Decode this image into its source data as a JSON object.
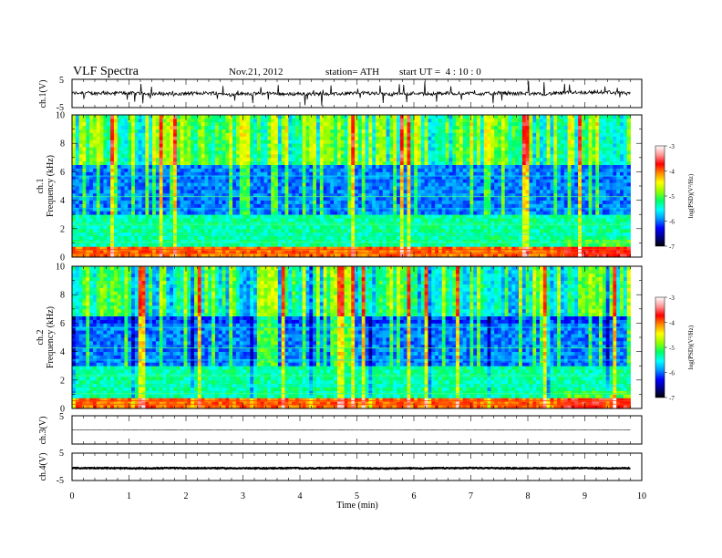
{
  "header": {
    "title": "VLF Spectra",
    "date": "Nov.21, 2012",
    "station": "station= ATH",
    "start": "start UT =  4 : 10 : 0"
  },
  "chart_data": [
    {
      "type": "line",
      "id": "ch1-waveform",
      "ylabel": "ch.1(V)",
      "ylim": [
        -5,
        5
      ],
      "y_ticks": [
        "5",
        "-5"
      ],
      "xlim": [
        0,
        10
      ],
      "x_end": 9.8,
      "baseline": 0,
      "noise_amplitude": 1.2
    },
    {
      "type": "heatmap",
      "id": "ch1-spectrogram",
      "ylabel": "ch.1 Frequency (kHz)",
      "ylim": [
        0,
        10
      ],
      "y_ticks": [
        "0",
        "2",
        "4",
        "6",
        "8",
        "10"
      ],
      "xlim": [
        0,
        10
      ],
      "x_end": 9.8,
      "colorbar": {
        "label": "log(PSD) (V²/Hz)",
        "range": [
          -7,
          -3
        ],
        "ticks": [
          "-3",
          "-4",
          "-5",
          "-6",
          "-7"
        ],
        "colors": [
          "#000000",
          "#00008b",
          "#0000ff",
          "#0096ff",
          "#00ffff",
          "#00ff64",
          "#96ff00",
          "#ffff00",
          "#ff8c00",
          "#ff0000",
          "#ff9696",
          "#ffffff"
        ]
      }
    },
    {
      "type": "heatmap",
      "id": "ch2-spectrogram",
      "ylabel": "ch.2 Frequency (kHz)",
      "ylim": [
        0,
        10
      ],
      "y_ticks": [
        "0",
        "2",
        "4",
        "6",
        "8",
        "10"
      ],
      "xlim": [
        0,
        10
      ],
      "x_end": 9.8,
      "colorbar": {
        "label": "log(PSD) (V²/Hz)",
        "range": [
          -7,
          -3
        ],
        "ticks": [
          "-3",
          "-4",
          "-5",
          "-6",
          "-7"
        ],
        "colors": [
          "#000000",
          "#00008b",
          "#0000ff",
          "#0096ff",
          "#00ffff",
          "#00ff64",
          "#96ff00",
          "#ffff00",
          "#ff8c00",
          "#ff0000",
          "#ff9696",
          "#ffffff"
        ]
      }
    },
    {
      "type": "line",
      "id": "ch3-waveform",
      "ylabel": "ch.3(V)",
      "ylim": [
        -5,
        5
      ],
      "y_ticks": [
        "5",
        "-5"
      ],
      "xlim": [
        0,
        10
      ],
      "x_end": 9.8,
      "baseline": 0,
      "noise_amplitude": 0.05
    },
    {
      "type": "line",
      "id": "ch4-waveform",
      "ylabel": "ch.4(V)",
      "ylim": [
        -5,
        5
      ],
      "y_ticks": [
        "5",
        "-5"
      ],
      "xlim": [
        0,
        10
      ],
      "x_end": 9.8,
      "baseline": -0.5,
      "noise_amplitude": 0.3
    }
  ],
  "x_axis": {
    "label": "Time (min)",
    "ticks": [
      "0",
      "1",
      "2",
      "3",
      "4",
      "5",
      "6",
      "7",
      "8",
      "9",
      "10"
    ]
  }
}
